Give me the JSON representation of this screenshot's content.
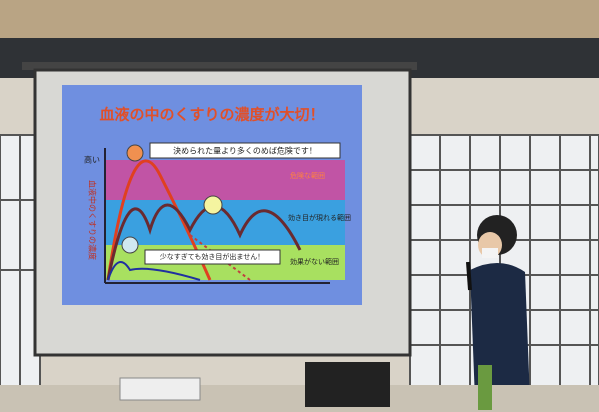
{
  "slide": {
    "title": "血液の中のくすりの濃度が大切！",
    "y_axis_high": "高い",
    "y_axis_label": "血液中のくすりの濃度",
    "danger_note": "決められた量より多くのめば危険です！",
    "low_note": "少なすぎても効き目が出ません！",
    "zones": [
      "危険な範囲",
      "効き目が現れる範囲",
      "効果がない範囲"
    ]
  }
}
